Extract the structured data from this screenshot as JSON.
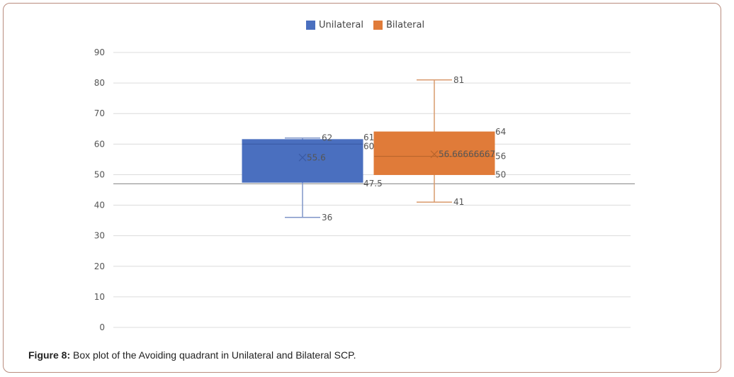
{
  "chart_data": {
    "type": "box",
    "ylim": [
      0,
      90
    ],
    "yticks": [
      "0",
      "10",
      "20",
      "30",
      "40",
      "50",
      "60",
      "70",
      "80",
      "90"
    ],
    "reference_line": 47,
    "series": [
      {
        "name": "Unilateral",
        "color": "#4a6fbf",
        "min": 36,
        "q1": 47.5,
        "median": 60,
        "q3": 61.5,
        "max": 62,
        "mean": 55.6,
        "labels": {
          "min": "36",
          "q1": "47.5",
          "median": "60",
          "q3": "61.5",
          "max": "62",
          "mean": "55.6"
        }
      },
      {
        "name": "Bilateral",
        "color": "#e07b39",
        "min": 41,
        "q1": 50,
        "median": 56,
        "q3": 64,
        "max": 81,
        "mean": 56.6666667,
        "labels": {
          "min": "41",
          "q1": "50",
          "median": "56",
          "q3": "64",
          "max": "81",
          "mean": "56.66666667"
        }
      }
    ]
  },
  "legend": {
    "unilateral": "Unilateral",
    "bilateral": "Bilateral"
  },
  "caption": {
    "label": "Figure 8:",
    "text": " Box plot of the Avoiding quadrant in Unilateral and Bilateral SCP."
  }
}
